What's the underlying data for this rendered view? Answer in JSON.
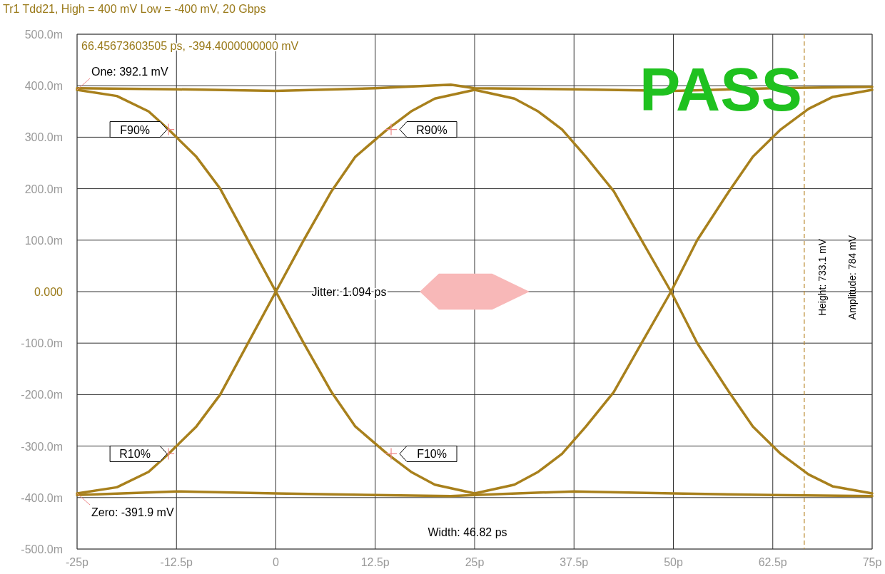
{
  "chart_data": {
    "type": "line",
    "title": "Tr1 Tdd21, High = 400 mV Low = -400 mV, 20 Gbps",
    "xlim": [
      -25,
      75
    ],
    "ylim": [
      -500,
      500
    ],
    "xticks": [
      {
        "value": -25,
        "label": "-25p"
      },
      {
        "value": -12.5,
        "label": "-12.5p"
      },
      0,
      {
        "value": 12.5,
        "label": "12.5p"
      },
      {
        "value": 25,
        "label": "25p"
      },
      {
        "value": 37.5,
        "label": "37.5p"
      },
      {
        "value": 50,
        "label": "50p"
      },
      {
        "value": 62.5,
        "label": "62.5p"
      },
      {
        "value": 75,
        "label": "75p"
      }
    ],
    "yticks": [
      {
        "value": -500,
        "label": "-500.0m"
      },
      {
        "value": -400,
        "label": "-400.0m"
      },
      {
        "value": -300,
        "label": "-300.0m"
      },
      {
        "value": -200,
        "label": "-200.0m"
      },
      {
        "value": -100,
        "label": "-100.0m"
      },
      {
        "value": 0,
        "label": "0.000"
      },
      {
        "value": 100,
        "label": "100.0m"
      },
      {
        "value": 200,
        "label": "200.0m"
      },
      {
        "value": 300,
        "label": "300.0m"
      },
      {
        "value": 400,
        "label": "400.0m"
      },
      {
        "value": 500,
        "label": "500.0m"
      }
    ],
    "grid": true,
    "line_style": "solid",
    "marker": "none",
    "series": [
      {
        "color": "#a8801c",
        "x": [
          -25,
          -20,
          -16,
          -13.5,
          -10,
          -7,
          -3.5,
          0,
          3.5,
          7,
          10,
          14,
          17,
          20,
          25,
          30,
          33,
          36,
          39,
          42.5,
          46,
          49.7,
          53,
          57,
          60,
          63.5,
          67,
          70,
          75
        ],
        "values": [
          392,
          380,
          350,
          315,
          262,
          200,
          100,
          0,
          -100,
          -195,
          -262,
          -315,
          -350,
          -375,
          -392,
          -375,
          -350,
          -315,
          -262,
          -195,
          -100,
          0,
          100,
          195,
          262,
          315,
          355,
          378,
          392
        ]
      },
      {
        "color": "#a8801c",
        "x": [
          -25,
          -20,
          -16,
          -13.5,
          -10,
          -7,
          -3.5,
          0,
          3.5,
          7,
          10,
          14,
          17,
          20,
          25,
          30,
          33,
          36,
          39,
          42.5,
          46,
          49.7,
          53,
          57,
          60,
          63.5,
          67,
          70,
          75
        ],
        "values": [
          -392,
          -380,
          -350,
          -315,
          -262,
          -200,
          -100,
          0,
          100,
          195,
          262,
          315,
          350,
          375,
          392,
          375,
          350,
          315,
          262,
          195,
          100,
          0,
          -100,
          -195,
          -262,
          -315,
          -355,
          -378,
          -392
        ]
      },
      {
        "color": "#a8801c",
        "x": [
          -25,
          -12.5,
          0,
          12.5,
          22,
          25,
          37.5,
          50,
          62.5,
          75
        ],
        "values": [
          395,
          393,
          390,
          395,
          402,
          395,
          393,
          390,
          395,
          398
        ]
      },
      {
        "color": "#a8801c",
        "x": [
          -25,
          -12.5,
          0,
          12.5,
          22,
          25,
          37.5,
          50,
          62.5,
          75
        ],
        "values": [
          -395,
          -388,
          -392,
          -395,
          -397,
          -395,
          -388,
          -392,
          -395,
          -397
        ]
      }
    ],
    "ref_lines": [
      {
        "axis": "x",
        "value": 66.46,
        "color": "#b8862b",
        "line_style": "dashed"
      }
    ],
    "annotations": [
      "66.45673603505 ps, -394.4000000000 mV",
      "PASS",
      "Jitter: 1.094 ps",
      "Width: 46.82 ps",
      "Height: 733.1 mV",
      "Amplitude: 784 mV",
      {
        "text": "One: 392.1 mV",
        "x": -25,
        "y": 392
      },
      {
        "text": "Zero: -391.9 mV",
        "x": -25,
        "y": -392
      },
      {
        "text": "F90%",
        "x": -13.5,
        "y": 315
      },
      {
        "text": "R90%",
        "x": 14.5,
        "y": 315
      },
      {
        "text": "R10%",
        "x": -13.5,
        "y": -315
      },
      {
        "text": "F10%",
        "x": 14.5,
        "y": -315
      }
    ]
  }
}
